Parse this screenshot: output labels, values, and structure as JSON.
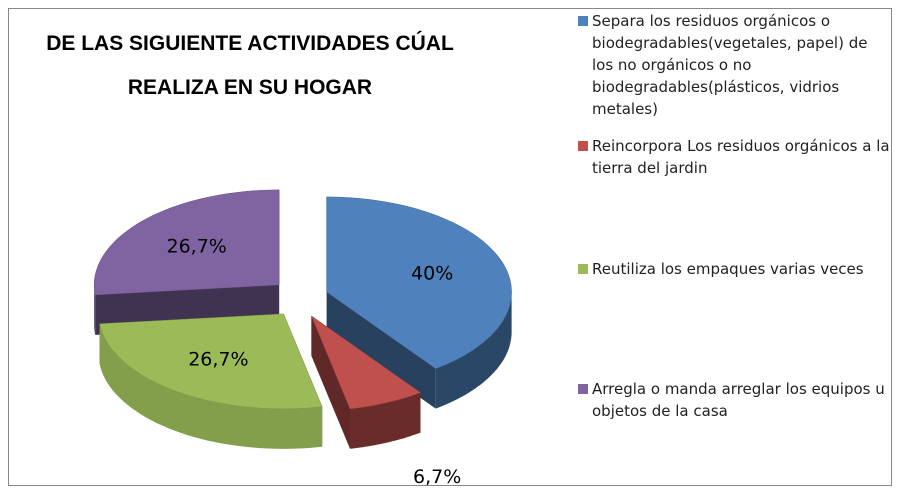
{
  "chart_data": {
    "type": "pie",
    "title": "DE LAS SIGUIENTE ACTIVIDADES CÚAL REALIZA EN SU HOGAR",
    "categories": [
      "Separa los residuos orgánicos o biodegradables(vegetales, papel) de los no orgánicos o no biodegradables(plásticos, vidrios metales)",
      "Reincorpora Los residuos orgánicos a la tierra del jardin",
      "Reutiliza los empaques varias veces",
      "Arregla o manda arreglar los equipos u objetos de la casa"
    ],
    "values": [
      40,
      6.7,
      26.7,
      26.7
    ],
    "value_labels": [
      "40%",
      "6,7%",
      "26,7%",
      "26,7%"
    ],
    "colors": [
      "#4f81bd",
      "#c0504d",
      "#9bbb59",
      "#8064a2"
    ],
    "legend": "right"
  }
}
